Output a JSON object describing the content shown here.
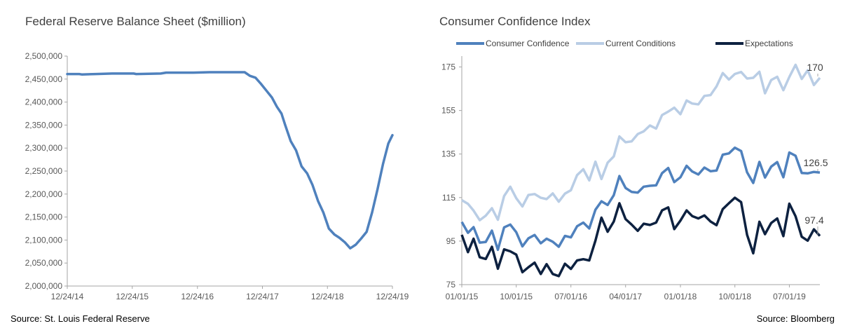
{
  "left": {
    "title": "Federal Reserve Balance Sheet ($million)",
    "source": "Source: St. Louis Federal Reserve"
  },
  "right": {
    "title": "Consumer Confidence Index",
    "source": "Source: Bloomberg"
  },
  "colors": {
    "consumer": "#4f81bd",
    "current": "#b9cde5",
    "expectations": "#0d2140",
    "axis": "#a6a6a6"
  },
  "chart_data": [
    {
      "type": "line",
      "title": "Federal Reserve Balance Sheet ($million)",
      "ylim": [
        2000000,
        2500000
      ],
      "yticks": [
        2000000,
        2050000,
        2100000,
        2150000,
        2200000,
        2250000,
        2300000,
        2350000,
        2400000,
        2450000,
        2500000
      ],
      "ytick_labels": [
        "2,000,000",
        "2,050,000",
        "2,100,000",
        "2,150,000",
        "2,200,000",
        "2,250,000",
        "2,300,000",
        "2,350,000",
        "2,400,000",
        "2,450,000",
        "2,500,000"
      ],
      "xlim": [
        "2014-12-24",
        "2019-12-24"
      ],
      "xticks": [
        "2014-12-24",
        "2015-12-24",
        "2016-12-24",
        "2017-12-24",
        "2018-12-24",
        "2019-12-24"
      ],
      "xtick_labels": [
        "12/24/14",
        "12/24/15",
        "12/24/16",
        "12/24/17",
        "12/24/18",
        "12/24/19"
      ],
      "grid": false,
      "series": [
        {
          "points": [
            [
              "2014-12-24",
              2461000
            ],
            [
              "2015-03-01",
              2461000
            ],
            [
              "2015-03-15",
              2460000
            ],
            [
              "2015-06-01",
              2461000
            ],
            [
              "2015-09-01",
              2462000
            ],
            [
              "2016-01-01",
              2462000
            ],
            [
              "2016-01-15",
              2461000
            ],
            [
              "2016-06-01",
              2462000
            ],
            [
              "2016-07-01",
              2464000
            ],
            [
              "2016-12-01",
              2464000
            ],
            [
              "2017-03-01",
              2465000
            ],
            [
              "2017-09-15",
              2465000
            ],
            [
              "2017-10-15",
              2457000
            ],
            [
              "2017-11-15",
              2453000
            ],
            [
              "2017-12-15",
              2440000
            ],
            [
              "2018-01-15",
              2425000
            ],
            [
              "2018-02-15",
              2410000
            ],
            [
              "2018-03-15",
              2390000
            ],
            [
              "2018-04-10",
              2375000
            ],
            [
              "2018-05-01",
              2350000
            ],
            [
              "2018-06-01",
              2315000
            ],
            [
              "2018-07-01",
              2295000
            ],
            [
              "2018-08-01",
              2260000
            ],
            [
              "2018-09-01",
              2245000
            ],
            [
              "2018-10-01",
              2220000
            ],
            [
              "2018-11-01",
              2185000
            ],
            [
              "2018-12-01",
              2160000
            ],
            [
              "2019-01-01",
              2125000
            ],
            [
              "2019-02-01",
              2112000
            ],
            [
              "2019-03-01",
              2105000
            ],
            [
              "2019-04-01",
              2095000
            ],
            [
              "2019-05-01",
              2082000
            ],
            [
              "2019-06-01",
              2090000
            ],
            [
              "2019-07-01",
              2103000
            ],
            [
              "2019-08-01",
              2118000
            ],
            [
              "2019-09-01",
              2160000
            ],
            [
              "2019-10-01",
              2210000
            ],
            [
              "2019-11-01",
              2265000
            ],
            [
              "2019-12-01",
              2310000
            ],
            [
              "2019-12-24",
              2328000
            ]
          ]
        }
      ]
    },
    {
      "type": "line",
      "title": "Consumer Confidence Index",
      "ylim": [
        75,
        180
      ],
      "yticks": [
        75,
        95,
        115,
        135,
        155,
        175
      ],
      "ytick_labels": [
        "75",
        "95",
        "115",
        "135",
        "155",
        "175"
      ],
      "xlim": [
        "2015-01-01",
        "2019-12-01"
      ],
      "xticks": [
        "2015-01-01",
        "2015-10-01",
        "2016-07-01",
        "2017-04-01",
        "2018-01-01",
        "2018-10-01",
        "2019-07-01"
      ],
      "xtick_labels": [
        "01/01/15",
        "10/01/15",
        "07/01/16",
        "04/01/17",
        "01/01/18",
        "10/01/18",
        "07/01/19"
      ],
      "grid": false,
      "legend": "top",
      "x_start": "2015-01",
      "x_frequency": "monthly",
      "series": [
        {
          "name": "Consumer Confidence",
          "color_key": "consumer",
          "label": "126.5",
          "values": [
            103.8,
            98.8,
            101.4,
            94.3,
            94.6,
            99.8,
            91.0,
            101.3,
            102.6,
            99.1,
            92.6,
            96.3,
            97.8,
            94.0,
            96.1,
            94.7,
            92.4,
            97.4,
            96.7,
            101.8,
            103.5,
            100.8,
            109.4,
            113.3,
            111.6,
            116.1,
            124.9,
            119.4,
            117.6,
            117.3,
            120.0,
            120.4,
            120.6,
            126.2,
            128.6,
            122.1,
            124.3,
            129.6,
            127.0,
            125.6,
            128.8,
            127.1,
            127.4,
            134.7,
            135.3,
            137.9,
            136.4,
            126.6,
            121.7,
            131.4,
            124.2,
            129.2,
            131.3,
            124.3,
            135.7,
            134.2,
            126.3,
            126.1,
            126.8,
            126.5
          ]
        },
        {
          "name": "Current Conditions",
          "color_key": "current",
          "label": "170",
          "values": [
            113.8,
            112.1,
            109.0,
            104.6,
            106.7,
            110.1,
            104.8,
            115.7,
            120.0,
            114.7,
            110.9,
            116.2,
            116.6,
            114.9,
            114.3,
            116.9,
            113.1,
            116.8,
            118.4,
            125.3,
            128.0,
            122.9,
            131.5,
            123.5,
            131.0,
            133.9,
            143.1,
            140.4,
            140.8,
            144.2,
            145.4,
            148.1,
            146.7,
            152.9,
            154.5,
            156.3,
            153.3,
            159.6,
            158.2,
            157.8,
            161.7,
            162.1,
            166.1,
            172.2,
            169.2,
            171.8,
            172.7,
            169.7,
            170.0,
            172.8,
            162.9,
            169.0,
            170.5,
            164.3,
            170.4,
            176.0,
            169.5,
            173.5,
            166.7,
            170.0
          ]
        },
        {
          "name": "Expectations",
          "color_key": "expectations",
          "label": "97.4",
          "values": [
            97.9,
            89.9,
            96.1,
            87.6,
            86.8,
            92.4,
            82.3,
            91.2,
            90.3,
            88.8,
            80.7,
            83.0,
            85.1,
            79.9,
            84.4,
            79.9,
            78.9,
            84.6,
            82.2,
            86.1,
            86.7,
            86.1,
            95.2,
            105.8,
            99.3,
            104.0,
            112.4,
            105.1,
            102.6,
            99.7,
            103.0,
            102.4,
            103.5,
            109.1,
            110.5,
            100.5,
            104.4,
            109.1,
            106.5,
            105.4,
            106.8,
            104.0,
            102.3,
            109.7,
            112.4,
            114.9,
            112.9,
            97.9,
            89.4,
            103.9,
            98.2,
            103.3,
            105.4,
            97.3,
            112.2,
            106.4,
            97.0,
            95.2,
            100.4,
            97.4
          ]
        }
      ]
    }
  ]
}
